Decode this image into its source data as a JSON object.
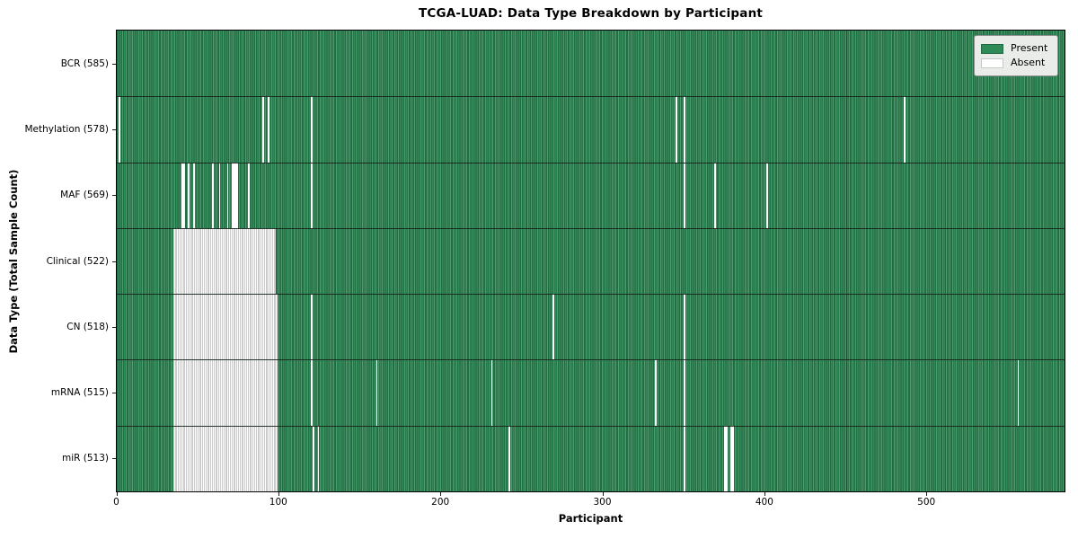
{
  "title": "TCGA-LUAD: Data Type Breakdown by Participant",
  "legend": {
    "present_label": "Present",
    "absent_label": "Absent"
  },
  "axes": {
    "xlabel": "Participant",
    "ylabel": "Data Type (Total Sample Count)",
    "x_ticks": [
      0,
      100,
      200,
      300,
      400,
      500
    ]
  },
  "colors": {
    "present": "#2e8b57",
    "present_alt": "#4d9c70",
    "cell_edge": "#17502f",
    "absent": "#ffffff",
    "absent_edge": "#979797",
    "legend_bg": "#e9ece9",
    "legend_border": "#909090",
    "axis": "#000000"
  },
  "chart_data": {
    "type": "heatmap",
    "title": "TCGA-LUAD: Data Type Breakdown by Participant",
    "xlabel": "Participant",
    "ylabel": "Data Type (Total Sample Count)",
    "x_ticks": [
      0,
      100,
      200,
      300,
      400,
      500
    ],
    "x_range": [
      0,
      585
    ],
    "n_participants": 585,
    "grid": false,
    "legend": [
      "Present",
      "Absent"
    ],
    "legend_position": "upper right",
    "value_encoding": {
      "present": 1,
      "absent": 0
    },
    "rows": [
      {
        "label": "BCR (585)",
        "data_type": "BCR",
        "total_samples": 585,
        "absent_blocks": [],
        "absent": []
      },
      {
        "label": "Methylation (578)",
        "data_type": "Methylation",
        "total_samples": 578,
        "absent_blocks": [],
        "absent": [
          1,
          90,
          93,
          120,
          345,
          350,
          486
        ]
      },
      {
        "label": "MAF (569)",
        "data_type": "MAF",
        "total_samples": 569,
        "absent_blocks": [],
        "absent": [
          40,
          41,
          44,
          47,
          59,
          63,
          68,
          71,
          72,
          73,
          74,
          81,
          120,
          350,
          369,
          401
        ]
      },
      {
        "label": "Clinical (522)",
        "data_type": "Clinical",
        "total_samples": 522,
        "absent_blocks": [
          [
            35,
            97
          ]
        ],
        "absent": []
      },
      {
        "label": "CN (518)",
        "data_type": "CN",
        "total_samples": 518,
        "absent_blocks": [
          [
            35,
            98
          ]
        ],
        "absent": [
          120,
          269,
          350
        ]
      },
      {
        "label": "mRNA (515)",
        "data_type": "mRNA",
        "total_samples": 515,
        "absent_blocks": [
          [
            35,
            98
          ]
        ],
        "absent": [
          120,
          160,
          231,
          332,
          350,
          556
        ]
      },
      {
        "label": "miR (513)",
        "data_type": "miR",
        "total_samples": 513,
        "absent_blocks": [
          [
            35,
            98
          ]
        ],
        "absent": [
          121,
          124,
          242,
          350,
          375,
          376,
          379,
          380
        ]
      }
    ]
  }
}
